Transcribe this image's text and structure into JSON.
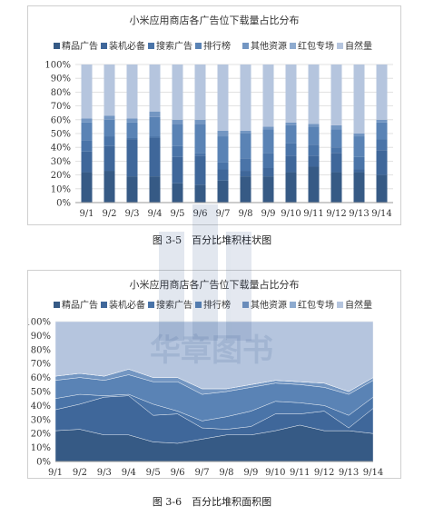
{
  "chart_data": [
    {
      "type": "bar",
      "stacked": true,
      "percent": true,
      "title": "小米应用商店各广告位下载量占比分布",
      "categories": [
        "9/1",
        "9/2",
        "9/3",
        "9/4",
        "9/5",
        "9/6",
        "9/7",
        "9/8",
        "9/9",
        "9/10",
        "9/11",
        "9/12",
        "9/13",
        "9/14"
      ],
      "yticks": [
        "0%",
        "10%",
        "20%",
        "30%",
        "40%",
        "50%",
        "60%",
        "70%",
        "80%",
        "90%",
        "100%"
      ],
      "ylim": [
        0,
        100
      ],
      "legend_position": "top",
      "series": [
        {
          "name": "精品广告",
          "color": "#365a85",
          "values": [
            22,
            23,
            19,
            19,
            14,
            13,
            16,
            19,
            19,
            22,
            26,
            22,
            22,
            20
          ]
        },
        {
          "name": "装机必备",
          "color": "#3f679a",
          "values": [
            15,
            18,
            27,
            28,
            19,
            21,
            8,
            4,
            6,
            12,
            8,
            14,
            2,
            18
          ]
        },
        {
          "name": "搜索广告",
          "color": "#4a74a8",
          "values": [
            8,
            7,
            1,
            1,
            8,
            2,
            5,
            9,
            11,
            9,
            8,
            4,
            9,
            8
          ]
        },
        {
          "name": "排行榜",
          "color": "#5a83b5",
          "values": [
            13,
            12,
            11,
            14,
            16,
            21,
            19,
            18,
            17,
            13,
            13,
            13,
            15,
            12
          ]
        },
        {
          "name": "其他资源",
          "color": "#7396c2",
          "values": [
            3,
            3,
            3,
            4,
            3,
            3,
            4,
            2,
            2,
            2,
            2,
            3,
            2,
            2
          ]
        },
        {
          "name": "红包专场",
          "color": "#8eabcf",
          "values": [
            0,
            0,
            0,
            0,
            0,
            0,
            0,
            0,
            0,
            0,
            0,
            0,
            0,
            0
          ]
        },
        {
          "name": "自然量",
          "color": "#b5c5de",
          "values": [
            39,
            37,
            39,
            34,
            40,
            40,
            48,
            48,
            45,
            42,
            43,
            44,
            50,
            40
          ]
        }
      ],
      "caption": "图 3-5　百分比堆积柱状图"
    },
    {
      "type": "area",
      "stacked": true,
      "percent": true,
      "title": "小米应用商店各广告位下载量占比分布",
      "categories": [
        "9/1",
        "9/2",
        "9/3",
        "9/4",
        "9/5",
        "9/6",
        "9/7",
        "9/8",
        "9/9",
        "9/10",
        "9/11",
        "9/12",
        "9/13",
        "9/14"
      ],
      "yticks": [
        "0%",
        "10%",
        "20%",
        "30%",
        "40%",
        "50%",
        "60%",
        "70%",
        "80%",
        "90%",
        "100%"
      ],
      "ylim": [
        0,
        100
      ],
      "legend_position": "top",
      "series": [
        {
          "name": "精品广告",
          "color": "#365a85",
          "values": [
            22,
            23,
            19,
            19,
            14,
            13,
            16,
            19,
            19,
            22,
            26,
            22,
            22,
            20
          ]
        },
        {
          "name": "装机必备",
          "color": "#3f679a",
          "values": [
            15,
            18,
            27,
            28,
            19,
            21,
            8,
            4,
            6,
            12,
            8,
            14,
            2,
            18
          ]
        },
        {
          "name": "搜索广告",
          "color": "#4a74a8",
          "values": [
            8,
            7,
            1,
            1,
            8,
            2,
            5,
            9,
            11,
            9,
            8,
            4,
            9,
            8
          ]
        },
        {
          "name": "排行榜",
          "color": "#5a83b5",
          "values": [
            13,
            12,
            11,
            14,
            16,
            21,
            19,
            18,
            17,
            13,
            13,
            13,
            15,
            12
          ]
        },
        {
          "name": "其他资源",
          "color": "#7396c2",
          "values": [
            3,
            3,
            3,
            4,
            3,
            3,
            4,
            2,
            2,
            2,
            2,
            3,
            2,
            2
          ]
        },
        {
          "name": "红包专场",
          "color": "#8eabcf",
          "values": [
            0,
            0,
            0,
            0,
            0,
            0,
            0,
            0,
            0,
            0,
            0,
            0,
            0,
            0
          ]
        },
        {
          "name": "自然量",
          "color": "#b5c5de",
          "values": [
            39,
            37,
            39,
            34,
            40,
            40,
            48,
            48,
            45,
            42,
            43,
            44,
            50,
            40
          ]
        }
      ],
      "caption": "图 3-6　百分比堆积面积图"
    }
  ],
  "watermark": "华章图书",
  "colors": {
    "grid": "#d9d9d9",
    "axis": "#999999",
    "text": "#333333"
  }
}
